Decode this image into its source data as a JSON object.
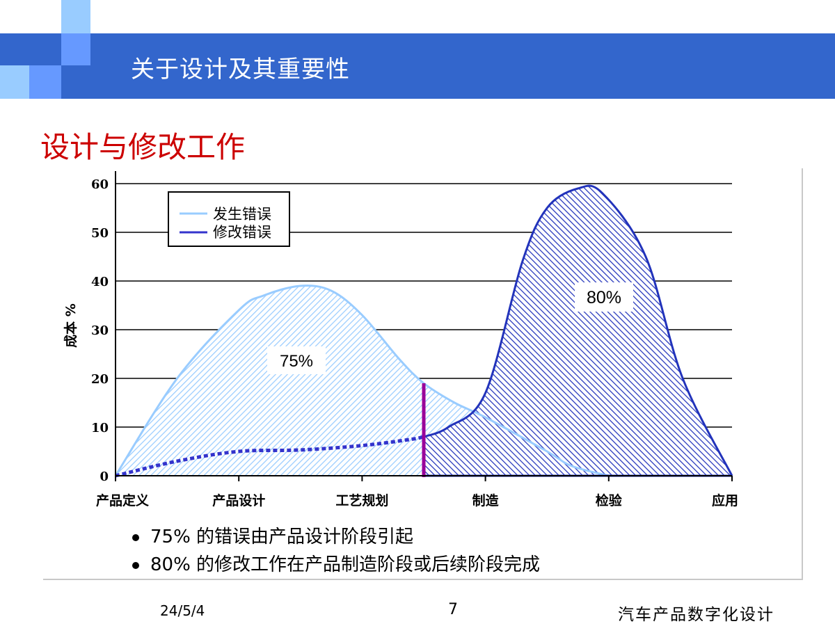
{
  "header": {
    "title": "关于设计及其重要性"
  },
  "slide": {
    "title_part1": "设计与",
    "title_part2": "修改工作"
  },
  "chart_data": {
    "type": "area",
    "ylabel": "成本 %",
    "ylim": [
      0,
      60
    ],
    "y_ticks": [
      "0",
      "10",
      "20",
      "30",
      "40",
      "50",
      "60"
    ],
    "categories": [
      "产品定义",
      "产品设计",
      "工艺规划",
      "制造",
      "检验",
      "应用"
    ],
    "legend": {
      "position": "top-left",
      "items": [
        "发生错误",
        "修改错误"
      ]
    },
    "series": [
      {
        "name": "发生错误",
        "color": "#99ccff",
        "x": [
          0,
          0.5,
          1,
          1.2,
          1.5,
          1.75,
          2.0,
          2.3,
          2.5,
          2.75,
          3.0,
          3.5,
          3.7,
          4.0
        ],
        "y": [
          0,
          20,
          34,
          37,
          39,
          38,
          33,
          24,
          19,
          15,
          12,
          5,
          2,
          0
        ]
      },
      {
        "name": "修改错误",
        "color": "#3333cc",
        "x": [
          0,
          0.5,
          1.0,
          1.5,
          2.0,
          2.4,
          2.5,
          2.7,
          3.0,
          3.3,
          3.5,
          3.75,
          3.95,
          4.3,
          4.6,
          5.0
        ],
        "y": [
          0,
          3,
          5,
          5.3,
          6.2,
          7.5,
          8,
          10,
          17,
          44,
          55,
          59,
          58,
          45,
          20,
          0
        ]
      }
    ],
    "divider_x": 2.5,
    "divider_color": "#990099",
    "annotations": [
      "75%",
      "80%"
    ]
  },
  "bullets": [
    "75% 的错误由产品设计阶段引起",
    "80% 的修改工作在产品制造阶段或后续阶段完成"
  ],
  "footer": {
    "date": "24/5/4",
    "page": "7",
    "course": "汽车产品数字化设计"
  }
}
